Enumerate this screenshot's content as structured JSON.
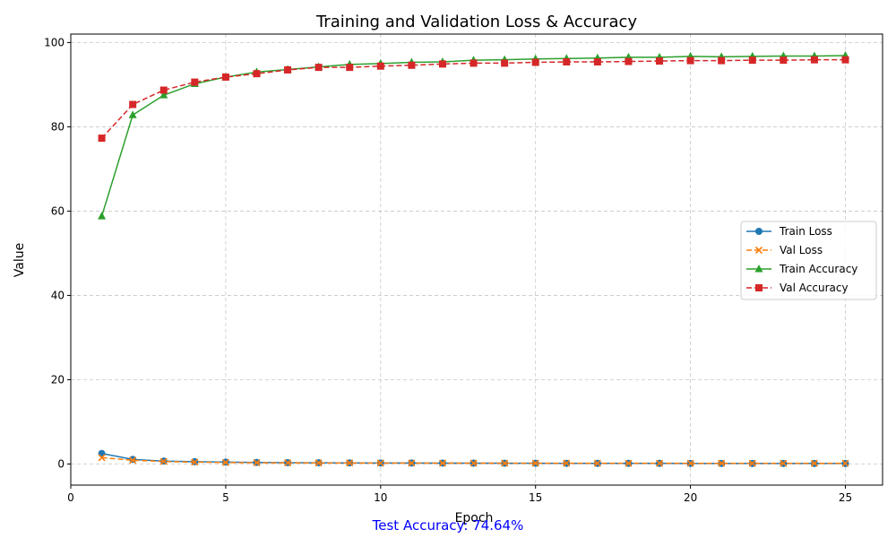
{
  "chart_data": {
    "type": "line",
    "title": "Training and Validation Loss & Accuracy",
    "xlabel": "Epoch",
    "ylabel": "Value",
    "xlim": [
      0,
      26.2
    ],
    "ylim": [
      -5,
      102
    ],
    "xticks": [
      0,
      5,
      10,
      15,
      20,
      25
    ],
    "yticks": [
      0,
      20,
      40,
      60,
      80,
      100
    ],
    "grid": true,
    "legend_position": "center-right",
    "x": [
      1,
      2,
      3,
      4,
      5,
      6,
      7,
      8,
      9,
      10,
      11,
      12,
      13,
      14,
      15,
      16,
      17,
      18,
      19,
      20,
      21,
      22,
      23,
      24,
      25
    ],
    "series": [
      {
        "name": "Train Loss",
        "color": "#1f77b4",
        "line_style": "solid",
        "marker": "circle",
        "values": [
          2.5,
          1.1,
          0.7,
          0.55,
          0.45,
          0.38,
          0.33,
          0.3,
          0.27,
          0.25,
          0.23,
          0.22,
          0.2,
          0.19,
          0.18,
          0.17,
          0.16,
          0.15,
          0.15,
          0.14,
          0.14,
          0.13,
          0.13,
          0.12,
          0.12
        ]
      },
      {
        "name": "Val Loss",
        "color": "#ff7f0e",
        "line_style": "dashed",
        "marker": "x",
        "values": [
          1.5,
          0.9,
          0.6,
          0.45,
          0.35,
          0.3,
          0.27,
          0.25,
          0.24,
          0.23,
          0.22,
          0.21,
          0.2,
          0.2,
          0.19,
          0.19,
          0.18,
          0.18,
          0.18,
          0.17,
          0.17,
          0.17,
          0.17,
          0.17,
          0.17
        ]
      },
      {
        "name": "Train Accuracy",
        "color": "#2ca02c",
        "line_style": "solid",
        "marker": "triangle",
        "values": [
          58.8,
          82.8,
          87.5,
          90.2,
          91.8,
          93.0,
          93.6,
          94.2,
          94.8,
          95.0,
          95.3,
          95.4,
          95.8,
          95.9,
          96.1,
          96.2,
          96.3,
          96.5,
          96.5,
          96.7,
          96.6,
          96.7,
          96.8,
          96.8,
          96.9
        ]
      },
      {
        "name": "Val Accuracy",
        "color": "#d62728",
        "line_style": "dashed",
        "marker": "square",
        "values": [
          77.3,
          85.3,
          88.7,
          90.6,
          91.8,
          92.6,
          93.5,
          94.1,
          94.1,
          94.4,
          94.6,
          94.9,
          95.1,
          95.1,
          95.3,
          95.4,
          95.4,
          95.5,
          95.6,
          95.7,
          95.7,
          95.8,
          95.8,
          95.9,
          95.9
        ]
      }
    ],
    "annotation": {
      "text": "Test Accuracy: 74.64%",
      "color": "#0000ff"
    }
  }
}
